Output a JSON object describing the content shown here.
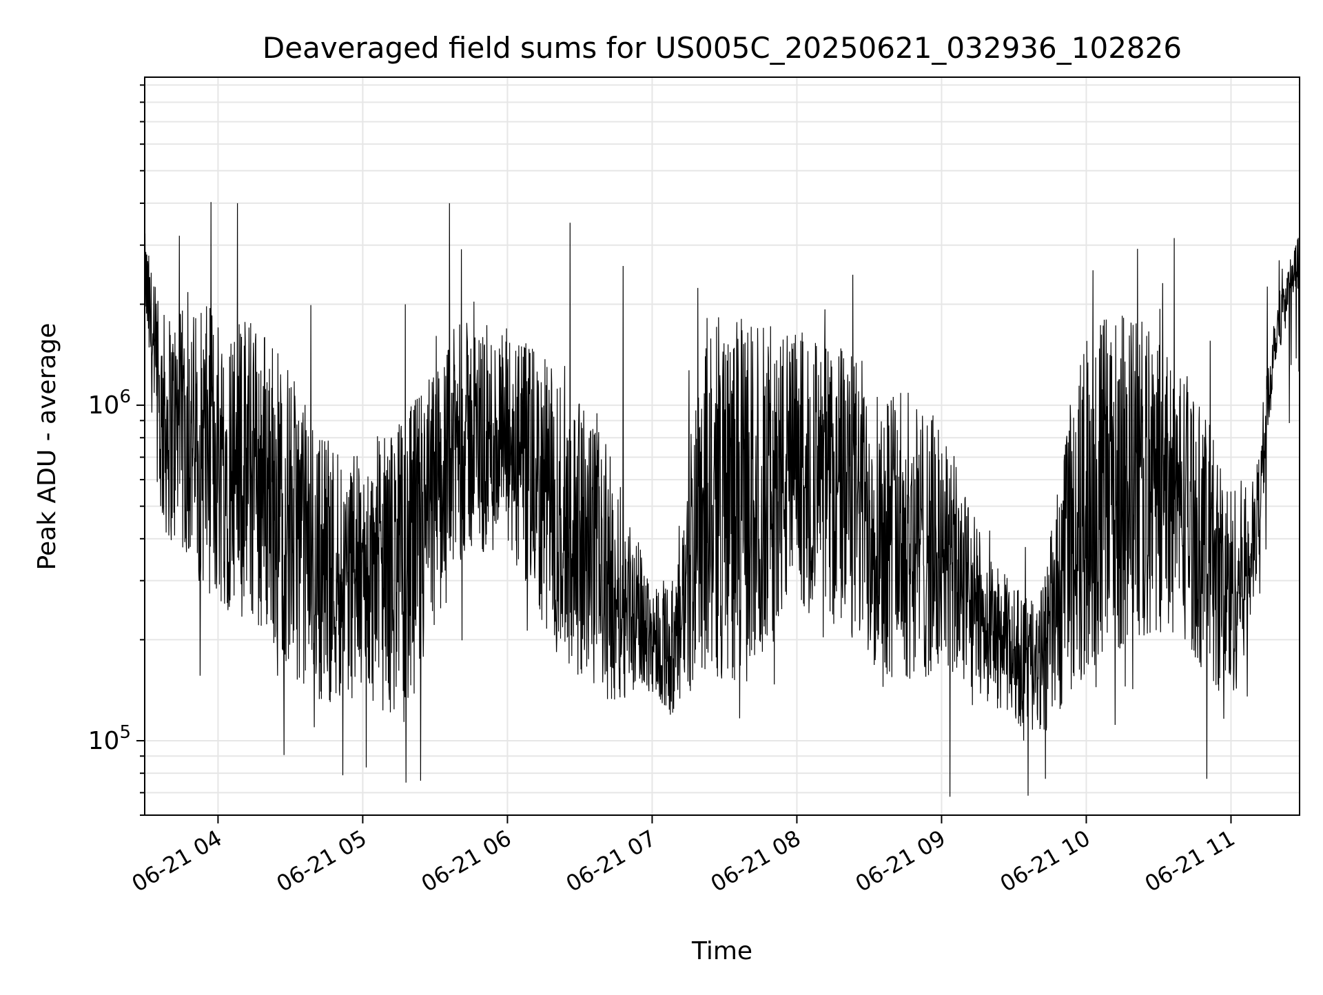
{
  "chart_data": {
    "type": "line",
    "title": "Deaveraged field sums for US005C_20250621_032936_102826",
    "xlabel": "Time",
    "ylabel": "Peak ADU - average",
    "yscale": "log",
    "xlim": [
      "2025-06-21T03:29:36",
      "2025-06-21T11:28:26"
    ],
    "ylim": [
      60000,
      9500000
    ],
    "grid": true,
    "line_color": "#000000",
    "x_ticks": [
      {
        "value": "2025-06-21T04:00:00",
        "label": "06-21 04"
      },
      {
        "value": "2025-06-21T05:00:00",
        "label": "06-21 05"
      },
      {
        "value": "2025-06-21T06:00:00",
        "label": "06-21 06"
      },
      {
        "value": "2025-06-21T07:00:00",
        "label": "06-21 07"
      },
      {
        "value": "2025-06-21T08:00:00",
        "label": "06-21 08"
      },
      {
        "value": "2025-06-21T09:00:00",
        "label": "06-21 09"
      },
      {
        "value": "2025-06-21T10:00:00",
        "label": "06-21 10"
      },
      {
        "value": "2025-06-21T11:00:00",
        "label": "06-21 11"
      }
    ],
    "y_ticks": [
      {
        "value": 100000,
        "label_base": "10",
        "label_exp": "5"
      },
      {
        "value": 1000000,
        "label_base": "10",
        "label_exp": "6"
      }
    ],
    "series_envelope": {
      "description_points": [
        {
          "x": "2025-06-21T03:29:36",
          "low": 1900000,
          "high": 3300000
        },
        {
          "x": "2025-06-21T03:36:00",
          "low": 420000,
          "high": 1900000
        },
        {
          "x": "2025-06-21T04:00:00",
          "low": 250000,
          "high": 2000000
        },
        {
          "x": "2025-06-21T04:20:00",
          "low": 200000,
          "high": 1800000
        },
        {
          "x": "2025-06-21T04:40:00",
          "low": 130000,
          "high": 900000
        },
        {
          "x": "2025-06-21T05:00:00",
          "low": 130000,
          "high": 700000
        },
        {
          "x": "2025-06-21T05:20:00",
          "low": 110000,
          "high": 1000000
        },
        {
          "x": "2025-06-21T05:40:00",
          "low": 350000,
          "high": 1800000
        },
        {
          "x": "2025-06-21T06:00:00",
          "low": 350000,
          "high": 1700000
        },
        {
          "x": "2025-06-21T06:20:00",
          "low": 180000,
          "high": 1300000
        },
        {
          "x": "2025-06-21T06:40:00",
          "low": 130000,
          "high": 800000
        },
        {
          "x": "2025-06-21T07:00:00",
          "low": 140000,
          "high": 300000
        },
        {
          "x": "2025-06-21T07:10:00",
          "low": 110000,
          "high": 300000
        },
        {
          "x": "2025-06-21T07:20:00",
          "low": 150000,
          "high": 1900000
        },
        {
          "x": "2025-06-21T07:40:00",
          "low": 150000,
          "high": 1800000
        },
        {
          "x": "2025-06-21T08:00:00",
          "low": 250000,
          "high": 1700000
        },
        {
          "x": "2025-06-21T08:20:00",
          "low": 200000,
          "high": 1500000
        },
        {
          "x": "2025-06-21T08:40:00",
          "low": 150000,
          "high": 1200000
        },
        {
          "x": "2025-06-21T09:00:00",
          "low": 150000,
          "high": 900000
        },
        {
          "x": "2025-06-21T09:20:00",
          "low": 130000,
          "high": 350000
        },
        {
          "x": "2025-06-21T09:40:00",
          "low": 100000,
          "high": 250000
        },
        {
          "x": "2025-06-21T10:00:00",
          "low": 150000,
          "high": 1800000
        },
        {
          "x": "2025-06-21T10:20:00",
          "low": 200000,
          "high": 1900000
        },
        {
          "x": "2025-06-21T10:40:00",
          "low": 200000,
          "high": 1400000
        },
        {
          "x": "2025-06-21T11:00:00",
          "low": 120000,
          "high": 600000
        },
        {
          "x": "2025-06-21T11:10:00",
          "low": 250000,
          "high": 600000
        },
        {
          "x": "2025-06-21T11:18:00",
          "low": 1300000,
          "high": 2000000
        },
        {
          "x": "2025-06-21T11:28:26",
          "low": 2300000,
          "high": 3300000
        }
      ]
    },
    "spikes": [
      {
        "x": "2025-06-21T04:08:00",
        "y": 4000000
      },
      {
        "x": "2025-06-21T05:36:00",
        "y": 4000000
      },
      {
        "x": "2025-06-21T06:26:00",
        "y": 3500000
      },
      {
        "x": "2025-06-21T03:44:00",
        "y": 3200000
      },
      {
        "x": "2025-06-21T06:48:00",
        "y": 2600000
      },
      {
        "x": "2025-06-21T05:18:00",
        "y": 75000
      },
      {
        "x": "2025-06-21T05:24:00",
        "y": 76000
      },
      {
        "x": "2025-06-21T09:43:00",
        "y": 77000
      },
      {
        "x": "2025-06-21T10:50:00",
        "y": 77000
      }
    ]
  }
}
